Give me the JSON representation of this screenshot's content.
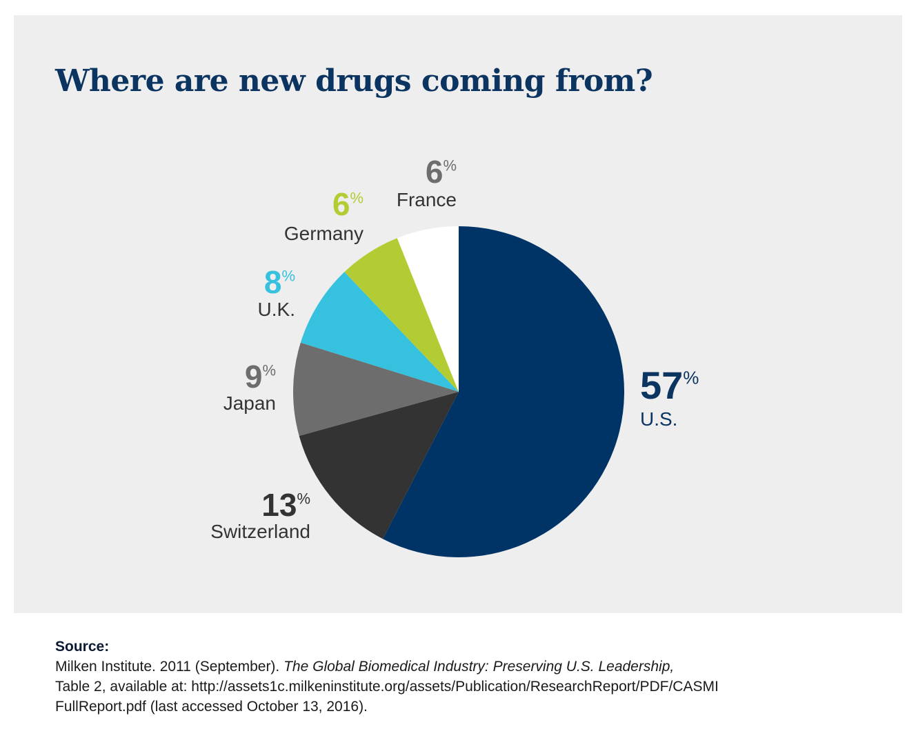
{
  "title": "Where are new drugs coming from?",
  "chart_data": {
    "type": "pie",
    "title": "Where are new drugs coming from?",
    "unit": "%",
    "start": "12 o'clock, clockwise",
    "slices": [
      {
        "label": "U.S.",
        "value": 57,
        "color": "#003366",
        "pct_color": "#0c3460"
      },
      {
        "label": "Switzerland",
        "value": 13,
        "color": "#333333",
        "pct_color": "#333333"
      },
      {
        "label": "Japan",
        "value": 9,
        "color": "#6d6d6d",
        "pct_color": "#6d6d6d"
      },
      {
        "label": "U.K.",
        "value": 8,
        "color": "#36c2de",
        "pct_color": "#36c2de"
      },
      {
        "label": "Germany",
        "value": 6,
        "color": "#b3cc34",
        "pct_color": "#b3cc34"
      },
      {
        "label": "France",
        "value": 6,
        "color": "#ffffff",
        "pct_color": "#6d6d6d"
      }
    ]
  },
  "source": {
    "heading": "Source:",
    "line1_prefix": "Milken Institute. 2011 (September). ",
    "line1_italic": "The Global Biomedical Industry: Preserving U.S. Leadership,",
    "line2": "Table 2, available at: http://assets1c.milkeninstitute.org/assets/Publication/ResearchReport/PDF/CASMI",
    "line3": "FullReport.pdf (last accessed October 13, 2016)."
  }
}
